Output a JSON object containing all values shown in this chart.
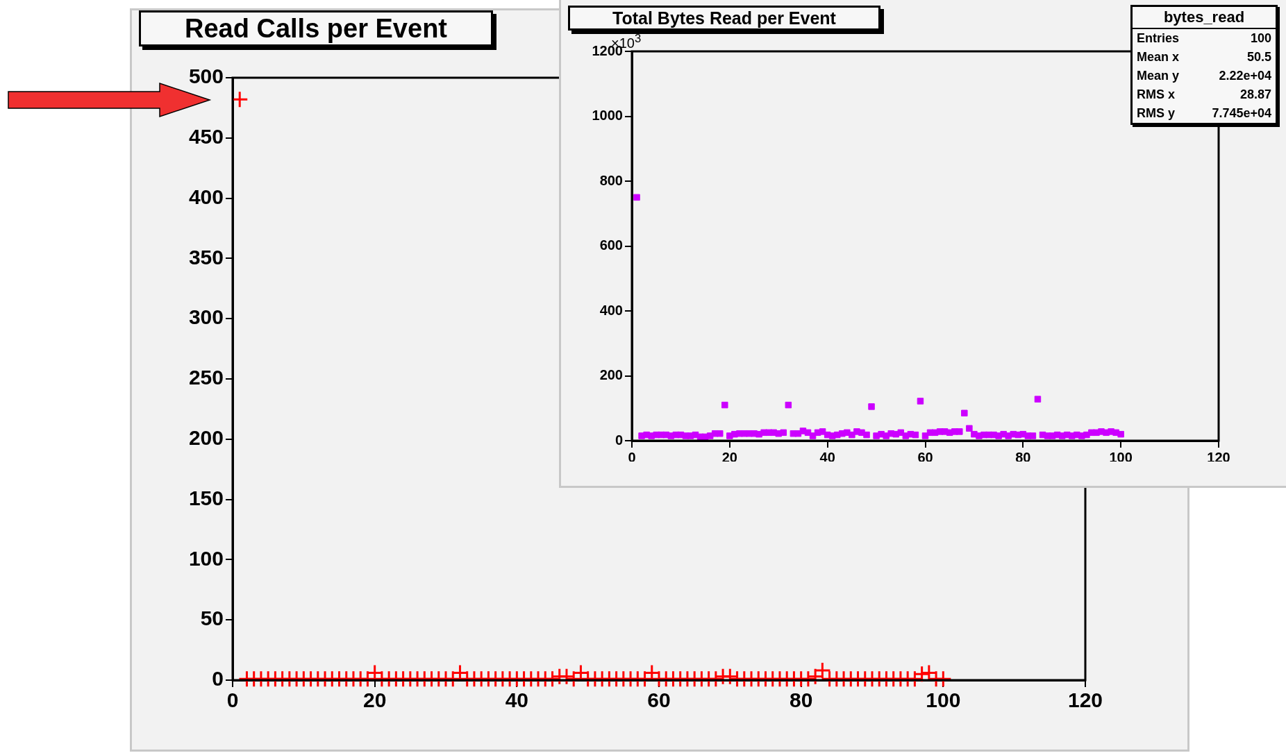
{
  "chart_data": [
    {
      "type": "scatter",
      "title": "Read Calls per Event",
      "color": "#ff0000",
      "marker": "cross",
      "xlim": [
        0,
        120
      ],
      "xticks": [
        0,
        20,
        40,
        60,
        80,
        100,
        120
      ],
      "ylim": [
        0,
        500
      ],
      "yticks": [
        0,
        50,
        100,
        150,
        200,
        250,
        300,
        350,
        400,
        450,
        500
      ],
      "x": [
        1,
        2,
        3,
        4,
        5,
        6,
        7,
        8,
        9,
        10,
        11,
        12,
        13,
        14,
        15,
        16,
        17,
        18,
        19,
        20,
        21,
        22,
        23,
        24,
        25,
        26,
        27,
        28,
        29,
        30,
        31,
        32,
        33,
        34,
        35,
        36,
        37,
        38,
        39,
        40,
        41,
        42,
        43,
        44,
        45,
        46,
        47,
        48,
        49,
        50,
        51,
        52,
        53,
        54,
        55,
        56,
        57,
        58,
        59,
        60,
        61,
        62,
        63,
        64,
        65,
        66,
        67,
        68,
        69,
        70,
        71,
        72,
        73,
        74,
        75,
        76,
        77,
        78,
        79,
        80,
        81,
        82,
        83,
        84,
        85,
        86,
        87,
        88,
        89,
        90,
        91,
        92,
        93,
        94,
        95,
        96,
        97,
        98,
        99,
        100
      ],
      "values": [
        482,
        1,
        1,
        1,
        1,
        1,
        1,
        1,
        1,
        1,
        1,
        1,
        1,
        1,
        1,
        1,
        1,
        1,
        1,
        6,
        1,
        1,
        1,
        1,
        1,
        1,
        1,
        1,
        1,
        1,
        1,
        6,
        1,
        1,
        1,
        1,
        1,
        1,
        1,
        1,
        1,
        1,
        1,
        1,
        1,
        3,
        3,
        1,
        6,
        1,
        1,
        1,
        1,
        1,
        1,
        1,
        1,
        1,
        6,
        1,
        1,
        1,
        1,
        1,
        1,
        1,
        1,
        1,
        3,
        3,
        1,
        1,
        1,
        1,
        1,
        1,
        1,
        1,
        1,
        1,
        1,
        3,
        8,
        1,
        1,
        1,
        1,
        1,
        1,
        1,
        1,
        1,
        1,
        1,
        1,
        1,
        5,
        6,
        1,
        1
      ]
    },
    {
      "type": "scatter",
      "title": "Total Bytes Read per Event",
      "color": "#cc00ff",
      "marker": "square",
      "xlim": [
        0,
        120
      ],
      "xticks": [
        0,
        20,
        40,
        60,
        80,
        100,
        120
      ],
      "ylim": [
        0,
        1200
      ],
      "yticks": [
        0,
        200,
        400,
        600,
        800,
        1000,
        1200
      ],
      "annotations": [
        "×10$^{3}$",
        "bytes_read",
        "Entries 100",
        "Mean x 50.5",
        "Mean y 2.22e+04",
        "RMS x 28.87",
        "RMS y 7.745e+04"
      ],
      "x": [
        1,
        2,
        3,
        4,
        5,
        6,
        7,
        8,
        9,
        10,
        11,
        12,
        13,
        14,
        15,
        16,
        17,
        18,
        19,
        20,
        21,
        22,
        23,
        24,
        25,
        26,
        27,
        28,
        29,
        30,
        31,
        32,
        33,
        34,
        35,
        36,
        37,
        38,
        39,
        40,
        41,
        42,
        43,
        44,
        45,
        46,
        47,
        48,
        49,
        50,
        51,
        52,
        53,
        54,
        55,
        56,
        57,
        58,
        59,
        60,
        61,
        62,
        63,
        64,
        65,
        66,
        67,
        68,
        69,
        70,
        71,
        72,
        73,
        74,
        75,
        76,
        77,
        78,
        79,
        80,
        81,
        82,
        83,
        84,
        85,
        86,
        87,
        88,
        89,
        90,
        91,
        92,
        93,
        94,
        95,
        96,
        97,
        98,
        99,
        100
      ],
      "values": [
        750,
        15,
        18,
        15,
        18,
        18,
        18,
        15,
        18,
        18,
        15,
        15,
        18,
        12,
        12,
        15,
        22,
        22,
        110,
        15,
        20,
        22,
        22,
        22,
        22,
        20,
        25,
        25,
        25,
        22,
        25,
        110,
        22,
        22,
        30,
        25,
        15,
        25,
        28,
        18,
        15,
        18,
        22,
        25,
        18,
        28,
        25,
        18,
        105,
        15,
        20,
        15,
        22,
        20,
        25,
        15,
        20,
        18,
        122,
        15,
        25,
        25,
        28,
        28,
        25,
        28,
        28,
        85,
        38,
        20,
        15,
        18,
        18,
        18,
        15,
        20,
        15,
        20,
        18,
        20,
        15,
        15,
        128,
        18,
        15,
        15,
        18,
        15,
        18,
        15,
        18,
        15,
        18,
        25,
        25,
        28,
        25,
        28,
        25,
        20
      ]
    }
  ]
}
